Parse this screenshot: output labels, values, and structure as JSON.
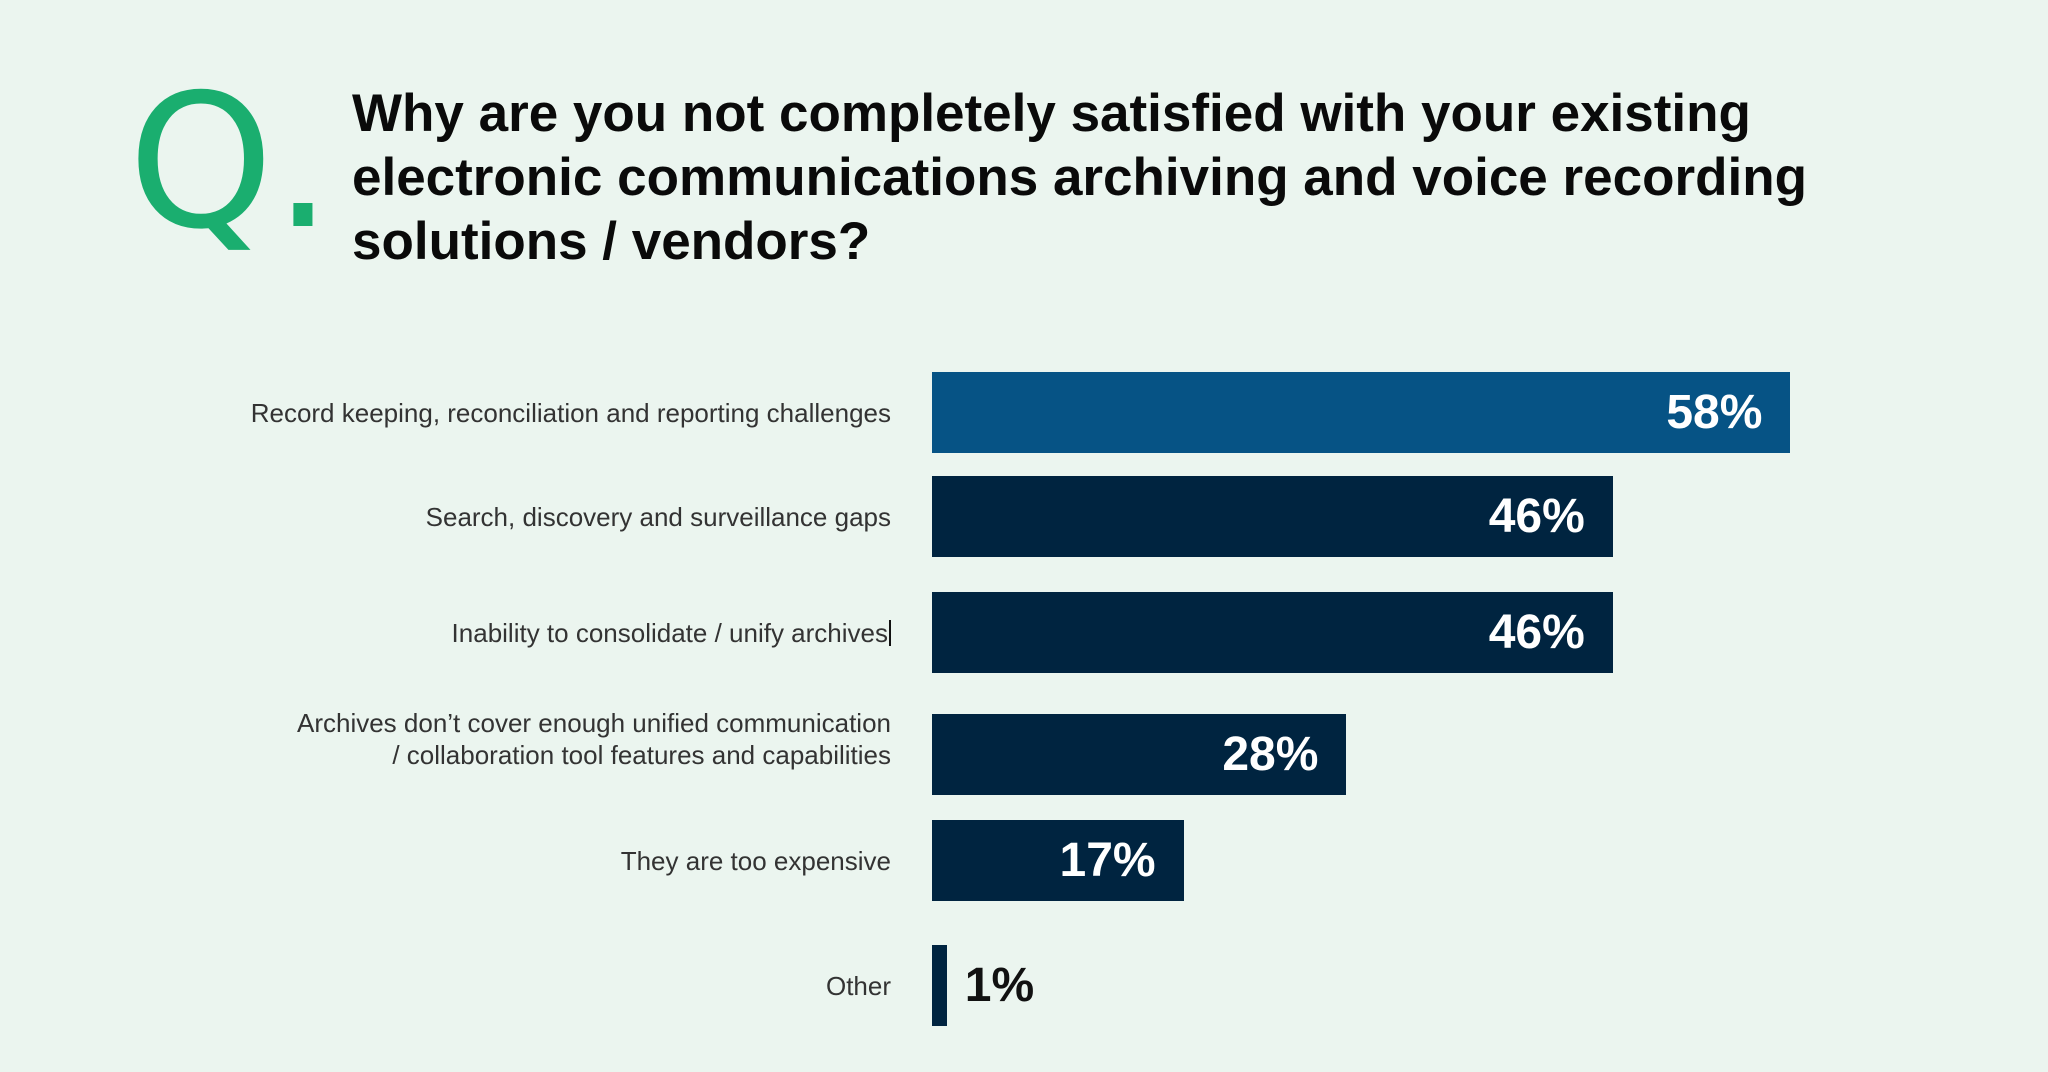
{
  "header": {
    "q_mark": "Q.",
    "title": "Why are you not completely satisfied with your existing electronic communications archiving and voice recording solutions / vendors?"
  },
  "colors": {
    "highlight": "#065385",
    "bar": "#002440",
    "accent": "#1aae6f",
    "background": "#ebf5ef"
  },
  "chart_data": {
    "type": "bar",
    "orientation": "horizontal",
    "title": "Why are you not completely satisfied with your existing electronic communications archiving and voice recording solutions / vendors?",
    "categories": [
      "Record keeping, reconciliation and reporting challenges",
      "Search, discovery and surveillance gaps",
      "Inability to consolidate / unify archives",
      "Archives don’t cover enough unified communication / collaboration tool features and capabilities",
      "They are too expensive",
      "Other"
    ],
    "values": [
      58,
      46,
      46,
      28,
      17,
      1
    ],
    "labels": [
      "58%",
      "46%",
      "46%",
      "28%",
      "17%",
      "1%"
    ],
    "unit": "%",
    "xlim": [
      0,
      60
    ],
    "grid": false
  }
}
